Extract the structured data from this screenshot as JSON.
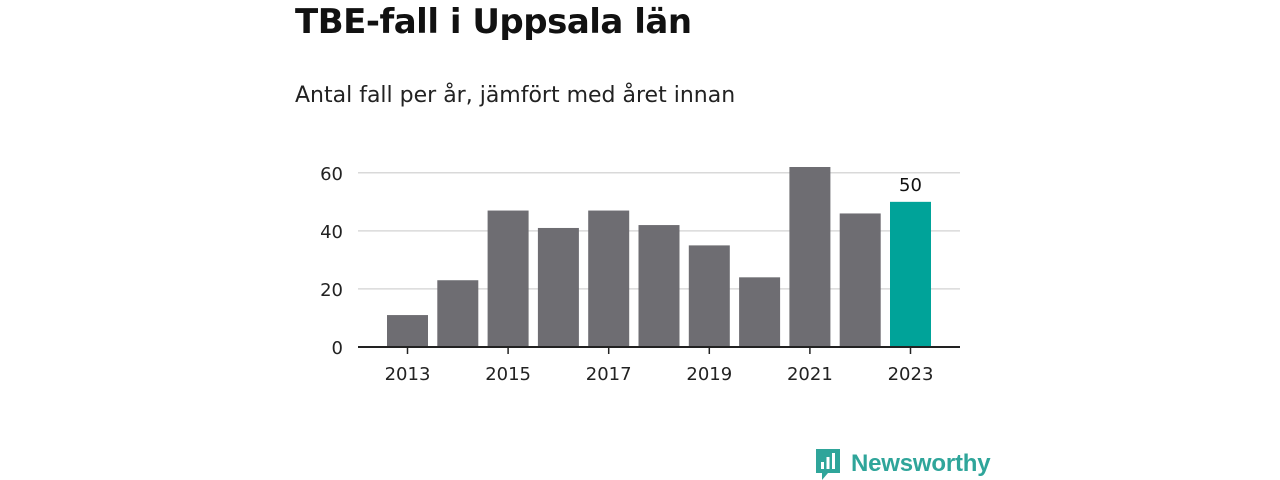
{
  "title": "TBE-fall i Uppsala län",
  "subtitle": "Antal fall per år, jämfört med året innan",
  "brand": {
    "name": "Newsworthy",
    "icon": "newsworthy-logo-icon"
  },
  "colors": {
    "bar": "#6e6d72",
    "highlight": "#00a399",
    "grid": "#d9d9d9",
    "axis": "#222222",
    "brand": "#2fa59a"
  },
  "chart_data": {
    "type": "bar",
    "categories": [
      "2013",
      "2014",
      "2015",
      "2016",
      "2017",
      "2018",
      "2019",
      "2020",
      "2021",
      "2022",
      "2023"
    ],
    "values": [
      11,
      23,
      47,
      41,
      47,
      42,
      35,
      24,
      62,
      46,
      50
    ],
    "highlight_index": 10,
    "data_labels": [
      {
        "index": 10,
        "text": "50"
      }
    ],
    "x_tick_labels": [
      "2013",
      "2015",
      "2017",
      "2019",
      "2021",
      "2023"
    ],
    "y_ticks": [
      0,
      20,
      40,
      60
    ],
    "ylim": [
      0,
      62
    ],
    "xlabel": "",
    "ylabel": "",
    "grid": true,
    "legend": false
  }
}
